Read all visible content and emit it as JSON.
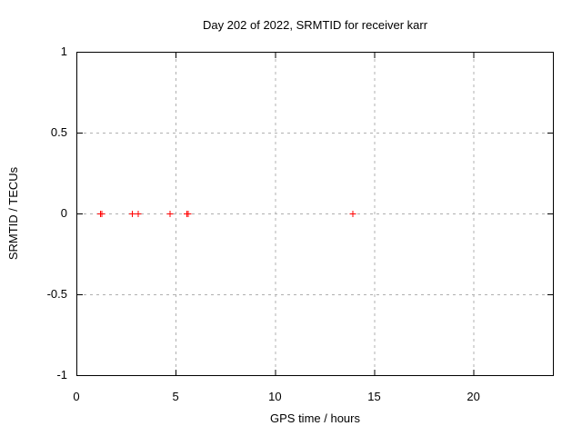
{
  "page": {
    "background": "#ffffff",
    "text_color": "#000000"
  },
  "chart_data": {
    "type": "scatter",
    "title": "Day 202 of 2022, SRMTID for receiver karr",
    "xlabel": "GPS time / hours",
    "ylabel": "SRMTID / TECUs",
    "xlim": [
      0,
      24
    ],
    "ylim": [
      -1,
      1
    ],
    "xticks": [
      0,
      5,
      10,
      15,
      20
    ],
    "xtick_labels": [
      "0",
      "5",
      "10",
      "15",
      "20"
    ],
    "yticks": [
      1,
      0.5,
      0,
      -0.5,
      -1
    ],
    "ytick_labels": [
      "1",
      "0.5",
      "0",
      "-0.5",
      "-1"
    ],
    "grid": {
      "show": true,
      "style": "dashed",
      "color": "#b0b0b0",
      "x_at": [
        5,
        10,
        15,
        20
      ],
      "y_at": [
        0.5,
        0,
        -0.5
      ]
    },
    "axis_color": "#000000",
    "legend": "none",
    "series": [
      {
        "name": "SRMTID",
        "marker": "plus",
        "color": "#ff0000",
        "x": [
          1.2,
          1.25,
          2.8,
          3.1,
          4.7,
          5.55,
          5.6,
          13.9
        ],
        "y": [
          0,
          0,
          0,
          0,
          0,
          0,
          0,
          0
        ]
      }
    ]
  }
}
